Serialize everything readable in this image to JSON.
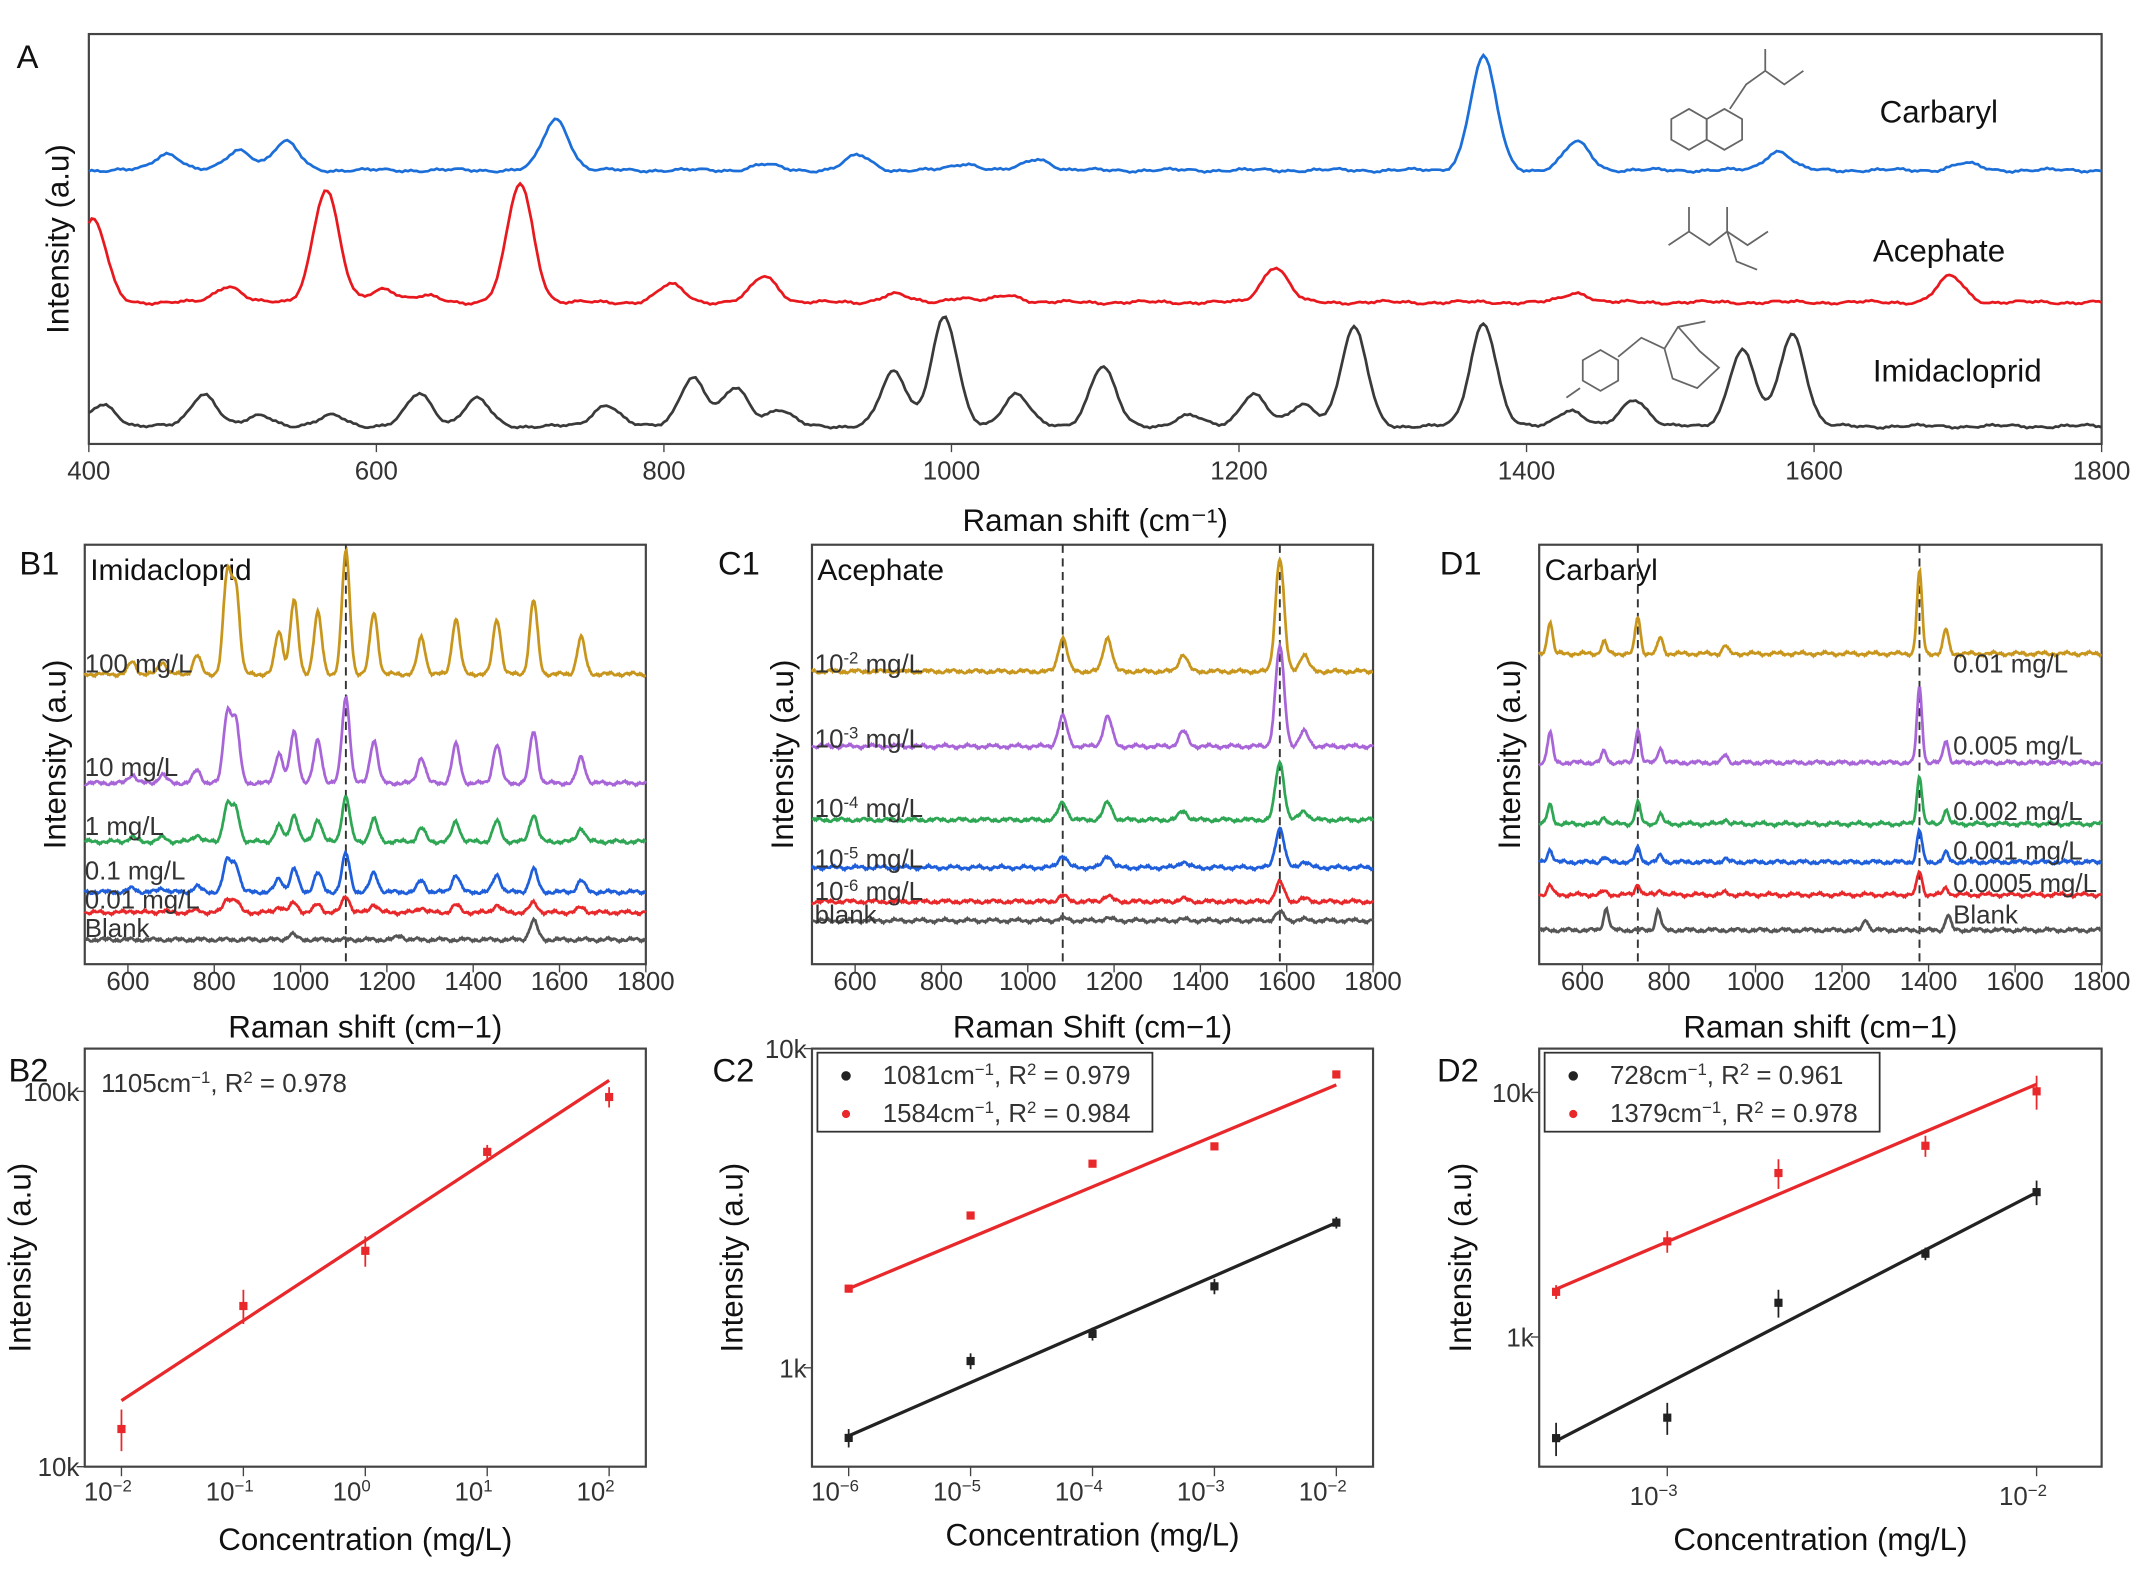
{
  "chart_data": [
    {
      "id": "A",
      "panel_label": "A",
      "type": "line",
      "xlabel": "Raman shift (cm⁻¹)",
      "ylabel": "Intensity (a.u)",
      "xlim": [
        400,
        1800
      ],
      "xticks": [
        "400",
        "600",
        "800",
        "1000",
        "1200",
        "1400",
        "1600",
        "1800"
      ],
      "series": [
        {
          "name": "Carbaryl",
          "color": "#1c6fd8",
          "peaks_cm1_rel": [
            [
              455,
              0.15
            ],
            [
              505,
              0.18
            ],
            [
              537,
              0.25
            ],
            [
              725,
              0.45
            ],
            [
              870,
              0.05
            ],
            [
              935,
              0.13
            ],
            [
              1010,
              0.06
            ],
            [
              1060,
              0.1
            ],
            [
              1370,
              1.0
            ],
            [
              1435,
              0.25
            ],
            [
              1575,
              0.17
            ],
            [
              1705,
              0.06
            ]
          ]
        },
        {
          "name": "Acephate",
          "color": "#e8191e",
          "peaks_cm1_rel": [
            [
              403,
              0.7
            ],
            [
              497,
              0.14
            ],
            [
              565,
              0.95
            ],
            [
              605,
              0.12
            ],
            [
              635,
              0.05
            ],
            [
              700,
              1.0
            ],
            [
              805,
              0.15
            ],
            [
              870,
              0.22
            ],
            [
              960,
              0.07
            ],
            [
              1005,
              0.04
            ],
            [
              1040,
              0.06
            ],
            [
              1225,
              0.3
            ],
            [
              1435,
              0.08
            ],
            [
              1695,
              0.22
            ]
          ]
        },
        {
          "name": "Imidacloprid",
          "color": "#3a3a3a",
          "peaks_cm1_rel": [
            [
              410,
              0.2
            ],
            [
              480,
              0.3
            ],
            [
              520,
              0.1
            ],
            [
              570,
              0.1
            ],
            [
              630,
              0.3
            ],
            [
              670,
              0.25
            ],
            [
              760,
              0.2
            ],
            [
              820,
              0.45
            ],
            [
              850,
              0.35
            ],
            [
              880,
              0.15
            ],
            [
              960,
              0.5
            ],
            [
              995,
              1.0
            ],
            [
              1045,
              0.3
            ],
            [
              1105,
              0.55
            ],
            [
              1165,
              0.1
            ],
            [
              1210,
              0.3
            ],
            [
              1245,
              0.2
            ],
            [
              1280,
              0.9
            ],
            [
              1370,
              0.95
            ],
            [
              1430,
              0.15
            ],
            [
              1475,
              0.25
            ],
            [
              1550,
              0.7
            ],
            [
              1585,
              0.85
            ]
          ]
        }
      ]
    },
    {
      "id": "B1",
      "panel_label": "B1",
      "type": "line",
      "title": "Imidacloprid",
      "xlabel": "Raman shift (cm−1)",
      "ylabel": "Intensity (a.u)",
      "xlim": [
        500,
        1800
      ],
      "xticks": [
        "600",
        "800",
        "1000",
        "1200",
        "1400",
        "1600",
        "1800"
      ],
      "marker_lines_cm1": [
        1105
      ],
      "peaks_cm1_rel": [
        [
          610,
          0.1
        ],
        [
          680,
          0.1
        ],
        [
          760,
          0.15
        ],
        [
          830,
          0.8
        ],
        [
          850,
          0.7
        ],
        [
          950,
          0.35
        ],
        [
          985,
          0.6
        ],
        [
          1040,
          0.5
        ],
        [
          1105,
          1.0
        ],
        [
          1170,
          0.5
        ],
        [
          1280,
          0.3
        ],
        [
          1360,
          0.45
        ],
        [
          1455,
          0.45
        ],
        [
          1540,
          0.6
        ],
        [
          1650,
          0.3
        ]
      ],
      "series": [
        {
          "name": "100 mg/L",
          "color": "#c8961c"
        },
        {
          "name": "10 mg/L",
          "color": "#a865d8"
        },
        {
          "name": "1 mg/L",
          "color": "#2ea654"
        },
        {
          "name": "0.1 mg/L",
          "color": "#1f5fdc"
        },
        {
          "name": "0.01 mg/L",
          "color": "#e8282a"
        },
        {
          "name": "Blank",
          "color": "#555555"
        }
      ]
    },
    {
      "id": "C1",
      "panel_label": "C1",
      "type": "line",
      "title": "Acephate",
      "xlabel": "Raman Shift (cm−1)",
      "ylabel": "Intensity (a.u)",
      "xlim": [
        500,
        1800
      ],
      "xticks": [
        "600",
        "800",
        "1000",
        "1200",
        "1400",
        "1600",
        "1800"
      ],
      "marker_lines_cm1": [
        1081,
        1584
      ],
      "peaks_cm1_rel": [
        [
          1081,
          0.3
        ],
        [
          1185,
          0.3
        ],
        [
          1360,
          0.15
        ],
        [
          1584,
          1.0
        ],
        [
          1640,
          0.15
        ]
      ],
      "series": [
        {
          "name": "10",
          "exp": "-2",
          "unit": " mg/L",
          "color": "#c8961c"
        },
        {
          "name": "10",
          "exp": "-3",
          "unit": " mg/L",
          "color": "#a865d8"
        },
        {
          "name": "10",
          "exp": "-4",
          "unit": " mg/L",
          "color": "#2ea654"
        },
        {
          "name": "10",
          "exp": "-5",
          "unit": " mg/L",
          "color": "#1f5fdc"
        },
        {
          "name": "10",
          "exp": "-6",
          "unit": " mg/L",
          "color": "#e8282a"
        },
        {
          "name": "blank",
          "exp": "",
          "unit": "",
          "color": "#555555"
        }
      ]
    },
    {
      "id": "D1",
      "panel_label": "D1",
      "type": "line",
      "title": "Carbaryl",
      "xlabel": "Raman shift (cm−1)",
      "ylabel": "Intensity (a.u)",
      "xlim": [
        500,
        1800
      ],
      "xticks": [
        "600",
        "800",
        "1000",
        "1200",
        "1400",
        "1600",
        "1800"
      ],
      "marker_lines_cm1": [
        728,
        1379
      ],
      "peaks_cm1_rel": [
        [
          525,
          0.4
        ],
        [
          650,
          0.15
        ],
        [
          728,
          0.45
        ],
        [
          780,
          0.2
        ],
        [
          930,
          0.1
        ],
        [
          1379,
          1.0
        ],
        [
          1440,
          0.3
        ]
      ],
      "series": [
        {
          "name": "0.01 mg/L",
          "color": "#c8961c"
        },
        {
          "name": "0.005 mg/L",
          "color": "#a865d8"
        },
        {
          "name": "0.002 mg/L",
          "color": "#2ea654"
        },
        {
          "name": "0.001 mg/L",
          "color": "#1f5fdc"
        },
        {
          "name": "0.0005 mg/L",
          "color": "#e8282a"
        },
        {
          "name": "Blank",
          "color": "#555555"
        }
      ]
    },
    {
      "id": "B2",
      "panel_label": "B2",
      "type": "scatter",
      "xscale": "log",
      "yscale": "log",
      "xlabel": "Concentration (mg/L)",
      "ylabel": "Intensity (a.u)",
      "xlim": [
        0.005,
        200
      ],
      "ylim": [
        10000,
        130000
      ],
      "xticks": [
        {
          "b": "10",
          "e": "−2",
          "v": 0.01
        },
        {
          "b": "10",
          "e": "−1",
          "v": 0.1
        },
        {
          "b": "10",
          "e": "0",
          "v": 1
        },
        {
          "b": "10",
          "e": "1",
          "v": 10
        },
        {
          "b": "10",
          "e": "2",
          "v": 100
        }
      ],
      "yticks": [
        {
          "t": "10k",
          "v": 10000
        },
        {
          "t": "100k",
          "v": 100000
        }
      ],
      "annotation": {
        "peak": "1105",
        "unit": "cm",
        "unit_exp": "−1",
        "r2": ", R",
        "r2_exp": "2",
        "r2_val": " = 0.978"
      },
      "series": [
        {
          "color": "#e8282a",
          "x": [
            0.01,
            0.1,
            1,
            10,
            100
          ],
          "y": [
            12600,
            26800,
            37600,
            69000,
            96600
          ],
          "yerr": [
            1600,
            2800,
            3500,
            3000,
            6000
          ],
          "fit": [
            [
              0.01,
              15000
            ],
            [
              100,
              107000
            ]
          ]
        }
      ]
    },
    {
      "id": "C2",
      "panel_label": "C2",
      "type": "scatter",
      "xscale": "log",
      "yscale": "log",
      "xlabel": "Concentration (mg/L)",
      "ylabel": "Intensity (a.u)",
      "xlim": [
        5e-07,
        0.02
      ],
      "ylim": [
        490,
        10000
      ],
      "xticks": [
        {
          "b": "10",
          "e": "−6",
          "v": 1e-06
        },
        {
          "b": "10",
          "e": "−5",
          "v": 1e-05
        },
        {
          "b": "10",
          "e": "−4",
          "v": 0.0001
        },
        {
          "b": "10",
          "e": "−3",
          "v": 0.001
        },
        {
          "b": "10",
          "e": "−2",
          "v": 0.01
        }
      ],
      "yticks": [
        {
          "t": "1k",
          "v": 1000
        },
        {
          "t": "10k",
          "v": 10000
        }
      ],
      "legend": "top-left",
      "series": [
        {
          "name": "1081",
          "unit": "cm",
          "unit_exp": "−1",
          "r2": ", R",
          "r2_exp": "2",
          "r2_val": " = 0.979",
          "color": "#222222",
          "x": [
            1e-06,
            1e-05,
            0.0001,
            0.001,
            0.01
          ],
          "y": [
            603,
            1050,
            1277,
            1800,
            2850
          ],
          "yerr": [
            40,
            60,
            60,
            100,
            120
          ],
          "fit": [
            [
              1e-06,
              612
            ],
            [
              0.01,
              2850
            ]
          ]
        },
        {
          "name": "1584",
          "unit": "cm",
          "unit_exp": "−1",
          "r2": ", R",
          "r2_exp": "2",
          "r2_val": " = 0.984",
          "color": "#e8282a",
          "x": [
            1e-06,
            1e-05,
            0.0001,
            0.001,
            0.01
          ],
          "y": [
            1770,
            3000,
            4360,
            4940,
            8300
          ],
          "yerr": [
            50,
            60,
            80,
            80,
            150
          ],
          "fit": [
            [
              1e-06,
              1770
            ],
            [
              0.01,
              7700
            ]
          ]
        }
      ]
    },
    {
      "id": "D2",
      "panel_label": "D2",
      "type": "scatter",
      "xscale": "log",
      "yscale": "log",
      "xlabel": "Concentration (mg/L)",
      "ylabel": "Intensity (a.u)",
      "xlim": [
        0.00045,
        0.015
      ],
      "ylim": [
        295,
        15100
      ],
      "xticks": [
        {
          "b": "10",
          "e": "−3",
          "v": 0.001
        },
        {
          "b": "10",
          "e": "−2",
          "v": 0.01
        }
      ],
      "yticks": [
        {
          "t": "1k",
          "v": 1000
        },
        {
          "t": "10k",
          "v": 10000
        }
      ],
      "legend": "top-left",
      "series": [
        {
          "name": "728",
          "unit": "cm",
          "unit_exp": "−1",
          "r2": ", R",
          "r2_exp": "2",
          "r2_val": " = 0.961",
          "color": "#222222",
          "x": [
            0.0005,
            0.001,
            0.002,
            0.005,
            0.01
          ],
          "y": [
            386,
            468,
            1380,
            2190,
            3910
          ],
          "yerr": [
            60,
            70,
            180,
            130,
            450
          ],
          "fit": [
            [
              0.0005,
              376
            ],
            [
              0.01,
              3900
            ]
          ]
        },
        {
          "name": "1379",
          "unit": "cm",
          "unit_exp": "−1",
          "r2": ", R",
          "r2_exp": "2",
          "r2_val": " = 0.978",
          "color": "#e8282a",
          "x": [
            0.0005,
            0.001,
            0.002,
            0.005,
            0.01
          ],
          "y": [
            1530,
            2460,
            4680,
            6050,
            10100
          ],
          "yerr": [
            100,
            250,
            650,
            600,
            1600
          ],
          "fit": [
            [
              0.0005,
              1570
            ],
            [
              0.01,
              10800
            ]
          ]
        }
      ]
    }
  ]
}
